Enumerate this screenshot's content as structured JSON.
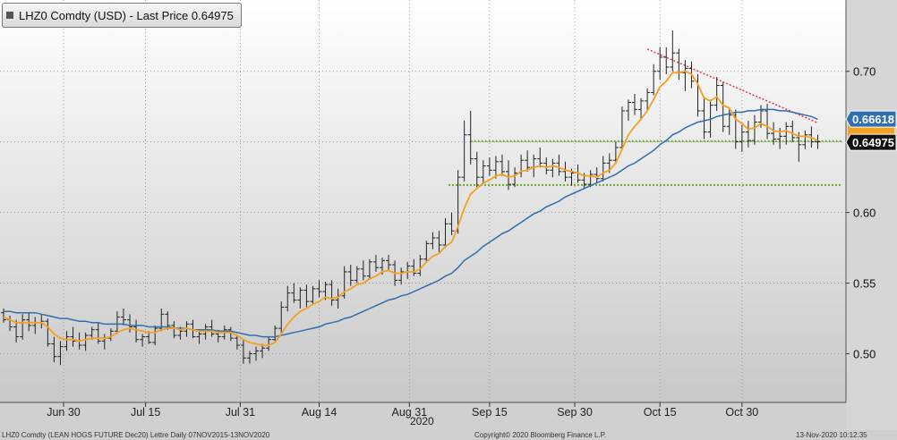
{
  "legend": {
    "label": "LHZ0 Comdty (USD) - Last Price 0.64975"
  },
  "footer": {
    "left": "LHZ0 Comdty (LEAN HOGS FUTURE  Dec20) Lettre  Daily 07NOV2015-13NOV2020",
    "center": "Copyright© 2020 Bloomberg Finance L.P.",
    "right": "13-Nov-2020 10:12:35"
  },
  "colors": {
    "price_bars": "#222222",
    "short_ma": "#f4a020",
    "long_ma": "#2f6eaf",
    "resistance": "#e8374b",
    "support": "#6aa82a",
    "long_ma_tag": "#2f6eaf",
    "last_price_tag": "#111111",
    "hidden_tag": "#f4a020"
  },
  "chart_data": {
    "type": "ohlc",
    "title": "LHZ0 Comdty (USD) - Last Price 0.64975",
    "x_tick_labels": [
      "Jun 30",
      "Jul 15",
      "Jul 31",
      "Aug 14",
      "Aug 31",
      "Sep 15",
      "Sep 30",
      "Oct 15",
      "Oct 30"
    ],
    "x_year_label": "2020",
    "y_tick_labels": [
      "0.70",
      "0.65",
      "0.60",
      "0.55",
      "0.50"
    ],
    "ylim": [
      0.4655,
      0.7505
    ],
    "grid": true,
    "price_tags": [
      {
        "label": "0.66618",
        "series": "long_ma",
        "value": 0.66618
      },
      {
        "label": "0.64975",
        "series": "last_price",
        "value": 0.64975
      }
    ],
    "ohlc": [
      [
        0.529,
        0.532,
        0.522,
        0.524
      ],
      [
        0.524,
        0.527,
        0.516,
        0.519
      ],
      [
        0.519,
        0.524,
        0.508,
        0.512
      ],
      [
        0.512,
        0.528,
        0.51,
        0.524
      ],
      [
        0.524,
        0.529,
        0.516,
        0.52
      ],
      [
        0.52,
        0.526,
        0.514,
        0.522
      ],
      [
        0.522,
        0.528,
        0.518,
        0.523
      ],
      [
        0.523,
        0.525,
        0.505,
        0.507
      ],
      [
        0.507,
        0.512,
        0.494,
        0.498
      ],
      [
        0.498,
        0.509,
        0.492,
        0.505
      ],
      [
        0.505,
        0.516,
        0.502,
        0.512
      ],
      [
        0.512,
        0.519,
        0.505,
        0.509
      ],
      [
        0.509,
        0.515,
        0.503,
        0.506
      ],
      [
        0.506,
        0.515,
        0.502,
        0.513
      ],
      [
        0.513,
        0.519,
        0.51,
        0.517
      ],
      [
        0.517,
        0.522,
        0.507,
        0.509
      ],
      [
        0.509,
        0.514,
        0.503,
        0.511
      ],
      [
        0.511,
        0.518,
        0.509,
        0.516
      ],
      [
        0.516,
        0.53,
        0.514,
        0.526
      ],
      [
        0.526,
        0.532,
        0.52,
        0.524
      ],
      [
        0.524,
        0.528,
        0.515,
        0.519
      ],
      [
        0.519,
        0.524,
        0.508,
        0.51
      ],
      [
        0.51,
        0.514,
        0.505,
        0.512
      ],
      [
        0.512,
        0.516,
        0.507,
        0.508
      ],
      [
        0.508,
        0.52,
        0.506,
        0.518
      ],
      [
        0.518,
        0.532,
        0.516,
        0.528
      ],
      [
        0.528,
        0.53,
        0.517,
        0.52
      ],
      [
        0.52,
        0.523,
        0.511,
        0.513
      ],
      [
        0.513,
        0.519,
        0.51,
        0.516
      ],
      [
        0.516,
        0.523,
        0.512,
        0.521
      ],
      [
        0.521,
        0.524,
        0.511,
        0.512
      ],
      [
        0.512,
        0.516,
        0.507,
        0.514
      ],
      [
        0.514,
        0.521,
        0.51,
        0.519
      ],
      [
        0.519,
        0.524,
        0.512,
        0.514
      ],
      [
        0.514,
        0.517,
        0.508,
        0.512
      ],
      [
        0.512,
        0.52,
        0.51,
        0.517
      ],
      [
        0.517,
        0.519,
        0.509,
        0.511
      ],
      [
        0.511,
        0.513,
        0.503,
        0.506
      ],
      [
        0.506,
        0.51,
        0.493,
        0.497
      ],
      [
        0.497,
        0.502,
        0.493,
        0.5
      ],
      [
        0.5,
        0.505,
        0.495,
        0.502
      ],
      [
        0.502,
        0.507,
        0.497,
        0.504
      ],
      [
        0.504,
        0.512,
        0.502,
        0.51
      ],
      [
        0.51,
        0.52,
        0.509,
        0.518
      ],
      [
        0.518,
        0.537,
        0.514,
        0.533
      ],
      [
        0.533,
        0.548,
        0.53,
        0.543
      ],
      [
        0.543,
        0.55,
        0.536,
        0.538
      ],
      [
        0.538,
        0.547,
        0.532,
        0.545
      ],
      [
        0.545,
        0.549,
        0.533,
        0.537
      ],
      [
        0.537,
        0.548,
        0.535,
        0.546
      ],
      [
        0.546,
        0.552,
        0.54,
        0.544
      ],
      [
        0.544,
        0.551,
        0.538,
        0.549
      ],
      [
        0.549,
        0.552,
        0.534,
        0.538
      ],
      [
        0.538,
        0.546,
        0.532,
        0.541
      ],
      [
        0.541,
        0.562,
        0.539,
        0.558
      ],
      [
        0.558,
        0.563,
        0.548,
        0.552
      ],
      [
        0.552,
        0.562,
        0.55,
        0.56
      ],
      [
        0.56,
        0.566,
        0.552,
        0.555
      ],
      [
        0.555,
        0.567,
        0.553,
        0.565
      ],
      [
        0.565,
        0.57,
        0.558,
        0.561
      ],
      [
        0.561,
        0.568,
        0.556,
        0.566
      ],
      [
        0.566,
        0.57,
        0.559,
        0.563
      ],
      [
        0.563,
        0.566,
        0.548,
        0.552
      ],
      [
        0.552,
        0.561,
        0.549,
        0.558
      ],
      [
        0.558,
        0.565,
        0.553,
        0.562
      ],
      [
        0.562,
        0.567,
        0.555,
        0.557
      ],
      [
        0.557,
        0.57,
        0.555,
        0.567
      ],
      [
        0.567,
        0.58,
        0.565,
        0.578
      ],
      [
        0.578,
        0.586,
        0.574,
        0.582
      ],
      [
        0.582,
        0.587,
        0.572,
        0.577
      ],
      [
        0.577,
        0.596,
        0.575,
        0.592
      ],
      [
        0.592,
        0.6,
        0.584,
        0.587
      ],
      [
        0.587,
        0.63,
        0.585,
        0.625
      ],
      [
        0.625,
        0.665,
        0.622,
        0.655
      ],
      [
        0.655,
        0.672,
        0.634,
        0.638
      ],
      [
        0.638,
        0.643,
        0.618,
        0.625
      ],
      [
        0.625,
        0.637,
        0.62,
        0.633
      ],
      [
        0.633,
        0.639,
        0.626,
        0.63
      ],
      [
        0.63,
        0.64,
        0.624,
        0.636
      ],
      [
        0.636,
        0.641,
        0.626,
        0.629
      ],
      [
        0.629,
        0.637,
        0.616,
        0.62
      ],
      [
        0.62,
        0.632,
        0.618,
        0.628
      ],
      [
        0.628,
        0.641,
        0.625,
        0.637
      ],
      [
        0.637,
        0.644,
        0.629,
        0.632
      ],
      [
        0.632,
        0.641,
        0.625,
        0.638
      ],
      [
        0.638,
        0.646,
        0.632,
        0.635
      ],
      [
        0.635,
        0.639,
        0.627,
        0.63
      ],
      [
        0.63,
        0.638,
        0.625,
        0.635
      ],
      [
        0.635,
        0.641,
        0.626,
        0.629
      ],
      [
        0.629,
        0.636,
        0.622,
        0.625
      ],
      [
        0.625,
        0.631,
        0.619,
        0.628
      ],
      [
        0.628,
        0.634,
        0.621,
        0.623
      ],
      [
        0.623,
        0.628,
        0.617,
        0.62
      ],
      [
        0.62,
        0.63,
        0.618,
        0.627
      ],
      [
        0.627,
        0.632,
        0.621,
        0.624
      ],
      [
        0.624,
        0.64,
        0.622,
        0.635
      ],
      [
        0.635,
        0.642,
        0.628,
        0.637
      ],
      [
        0.637,
        0.65,
        0.635,
        0.646
      ],
      [
        0.646,
        0.675,
        0.644,
        0.672
      ],
      [
        0.672,
        0.68,
        0.665,
        0.678
      ],
      [
        0.678,
        0.684,
        0.669,
        0.673
      ],
      [
        0.673,
        0.681,
        0.666,
        0.679
      ],
      [
        0.679,
        0.688,
        0.672,
        0.685
      ],
      [
        0.685,
        0.705,
        0.683,
        0.7
      ],
      [
        0.7,
        0.717,
        0.694,
        0.71
      ],
      [
        0.71,
        0.717,
        0.698,
        0.703
      ],
      [
        0.703,
        0.729,
        0.7,
        0.713
      ],
      [
        0.713,
        0.716,
        0.694,
        0.699
      ],
      [
        0.699,
        0.708,
        0.686,
        0.702
      ],
      [
        0.702,
        0.707,
        0.688,
        0.693
      ],
      [
        0.693,
        0.698,
        0.668,
        0.672
      ],
      [
        0.672,
        0.682,
        0.652,
        0.657
      ],
      [
        0.657,
        0.68,
        0.653,
        0.676
      ],
      [
        0.676,
        0.696,
        0.672,
        0.69
      ],
      [
        0.69,
        0.692,
        0.657,
        0.661
      ],
      [
        0.661,
        0.673,
        0.655,
        0.669
      ],
      [
        0.669,
        0.673,
        0.645,
        0.65
      ],
      [
        0.65,
        0.662,
        0.643,
        0.657
      ],
      [
        0.657,
        0.665,
        0.646,
        0.651
      ],
      [
        0.651,
        0.669,
        0.648,
        0.664
      ],
      [
        0.664,
        0.676,
        0.66,
        0.672
      ],
      [
        0.672,
        0.677,
        0.652,
        0.656
      ],
      [
        0.656,
        0.664,
        0.648,
        0.652
      ],
      [
        0.652,
        0.66,
        0.645,
        0.654
      ],
      [
        0.654,
        0.664,
        0.648,
        0.661
      ],
      [
        0.661,
        0.665,
        0.65,
        0.653
      ],
      [
        0.653,
        0.657,
        0.636,
        0.648
      ],
      [
        0.648,
        0.658,
        0.645,
        0.655
      ],
      [
        0.655,
        0.661,
        0.646,
        0.65
      ],
      [
        0.65,
        0.655,
        0.645,
        0.65
      ]
    ],
    "short_ma": [
      0.526,
      0.524,
      0.522,
      0.522,
      0.522,
      0.522,
      0.522,
      0.519,
      0.514,
      0.511,
      0.51,
      0.51,
      0.509,
      0.51,
      0.511,
      0.511,
      0.511,
      0.512,
      0.515,
      0.517,
      0.518,
      0.517,
      0.516,
      0.515,
      0.515,
      0.517,
      0.518,
      0.518,
      0.517,
      0.518,
      0.517,
      0.516,
      0.516,
      0.516,
      0.515,
      0.515,
      0.515,
      0.513,
      0.51,
      0.508,
      0.507,
      0.506,
      0.506,
      0.508,
      0.514,
      0.521,
      0.526,
      0.53,
      0.532,
      0.535,
      0.537,
      0.54,
      0.539,
      0.54,
      0.544,
      0.546,
      0.549,
      0.55,
      0.553,
      0.555,
      0.558,
      0.559,
      0.557,
      0.557,
      0.558,
      0.558,
      0.56,
      0.565,
      0.569,
      0.571,
      0.576,
      0.579,
      0.59,
      0.603,
      0.613,
      0.617,
      0.621,
      0.623,
      0.626,
      0.627,
      0.625,
      0.626,
      0.629,
      0.63,
      0.632,
      0.633,
      0.632,
      0.633,
      0.632,
      0.63,
      0.629,
      0.628,
      0.626,
      0.626,
      0.625,
      0.628,
      0.63,
      0.635,
      0.645,
      0.655,
      0.661,
      0.666,
      0.672,
      0.68,
      0.689,
      0.693,
      0.699,
      0.699,
      0.7,
      0.698,
      0.691,
      0.681,
      0.679,
      0.682,
      0.676,
      0.674,
      0.666,
      0.663,
      0.659,
      0.66,
      0.663,
      0.661,
      0.658,
      0.657,
      0.658,
      0.656,
      0.654,
      0.654,
      0.653,
      0.651
    ],
    "long_ma": [
      0.53,
      0.53,
      0.529,
      0.529,
      0.529,
      0.529,
      0.528,
      0.527,
      0.526,
      0.525,
      0.525,
      0.524,
      0.523,
      0.523,
      0.522,
      0.522,
      0.521,
      0.521,
      0.521,
      0.521,
      0.52,
      0.52,
      0.52,
      0.519,
      0.519,
      0.519,
      0.519,
      0.518,
      0.518,
      0.518,
      0.517,
      0.517,
      0.517,
      0.517,
      0.516,
      0.516,
      0.516,
      0.515,
      0.514,
      0.513,
      0.513,
      0.512,
      0.512,
      0.512,
      0.513,
      0.514,
      0.515,
      0.516,
      0.517,
      0.518,
      0.519,
      0.521,
      0.522,
      0.523,
      0.525,
      0.526,
      0.528,
      0.53,
      0.532,
      0.534,
      0.536,
      0.538,
      0.539,
      0.541,
      0.542,
      0.544,
      0.546,
      0.548,
      0.55,
      0.552,
      0.555,
      0.557,
      0.561,
      0.566,
      0.569,
      0.572,
      0.576,
      0.579,
      0.582,
      0.585,
      0.587,
      0.59,
      0.593,
      0.596,
      0.599,
      0.601,
      0.604,
      0.606,
      0.608,
      0.611,
      0.613,
      0.615,
      0.617,
      0.619,
      0.621,
      0.623,
      0.625,
      0.627,
      0.63,
      0.633,
      0.635,
      0.638,
      0.641,
      0.644,
      0.648,
      0.651,
      0.655,
      0.657,
      0.66,
      0.662,
      0.664,
      0.665,
      0.666,
      0.668,
      0.669,
      0.67,
      0.671,
      0.671,
      0.672,
      0.672,
      0.673,
      0.673,
      0.673,
      0.672,
      0.672,
      0.671,
      0.67,
      0.669,
      0.668,
      0.666
    ],
    "support_levels": [
      0.6505,
      0.6195
    ],
    "resistance_line": {
      "from": [
        102,
        0.7157
      ],
      "to": [
        129,
        0.6635
      ]
    }
  }
}
